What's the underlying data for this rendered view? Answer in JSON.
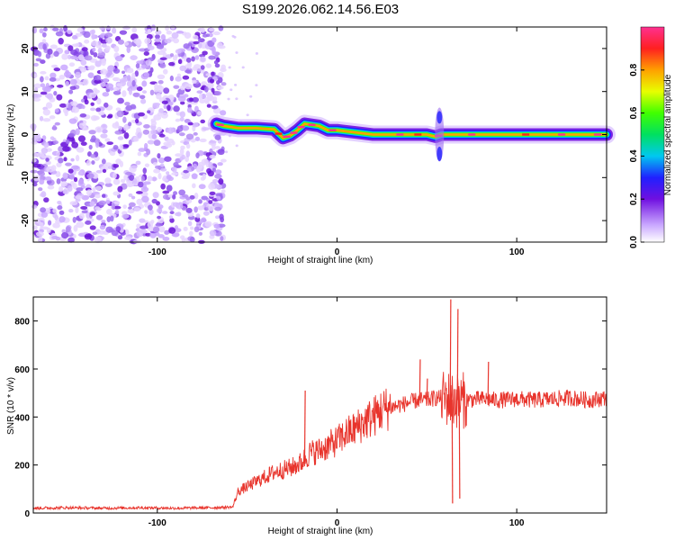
{
  "title": "S199.2026.062.14.56.E03",
  "chart_data": [
    {
      "type": "heatmap",
      "title": "S199.2026.062.14.56.E03",
      "xlabel": "Height of straight line (km)",
      "ylabel": "Frequency (Hz)",
      "xlim": [
        -169,
        150
      ],
      "ylim": [
        -25,
        25
      ],
      "xticks": [
        -100,
        0,
        100
      ],
      "xtick_labels": [
        "-100",
        "0",
        "100"
      ],
      "yticks": [
        -20,
        -10,
        0,
        10,
        20
      ],
      "ytick_labels": [
        "-20",
        "-10",
        "0",
        "10",
        "20"
      ],
      "noise_region": {
        "x_from": -169,
        "x_to": -63
      },
      "tone_track": {
        "x": [
          -67,
          -63,
          -55,
          -45,
          -35,
          -30,
          -26,
          -22,
          -18,
          -10,
          -5,
          0,
          10,
          20,
          40,
          50,
          55,
          58,
          62,
          70,
          90,
          110,
          130,
          150
        ],
        "freq": [
          2.5,
          2.0,
          1.5,
          1.5,
          1.2,
          -0.8,
          -0.2,
          1.0,
          2.5,
          2.0,
          1.0,
          1.0,
          0.5,
          0.0,
          0.0,
          0.0,
          -0.5,
          0.0,
          0.0,
          0.0,
          0.0,
          0.0,
          0.0,
          0.0
        ]
      },
      "colorbar": {
        "label": "Normalized spectral amplitude",
        "range": [
          0,
          1
        ],
        "ticks": [
          0.0,
          0.2,
          0.4,
          0.6,
          0.8
        ],
        "tick_labels": [
          "0.0",
          "0.2",
          "0.4",
          "0.6",
          "0.8"
        ]
      }
    },
    {
      "type": "line",
      "xlabel": "Height of straight line (km)",
      "ylabel": "SNR (10 * v/v)",
      "xlim": [
        -169,
        150
      ],
      "ylim": [
        0,
        900
      ],
      "xticks": [
        -100,
        0,
        100
      ],
      "xtick_labels": [
        "-100",
        "0",
        "100"
      ],
      "yticks": [
        0,
        200,
        400,
        600,
        800
      ],
      "ytick_labels": [
        "0",
        "200",
        "400",
        "600",
        "800"
      ],
      "color": "#e8342c",
      "series": [
        {
          "name": "SNR",
          "x": [
            -169,
            -150,
            -130,
            -110,
            -90,
            -70,
            -58,
            -55,
            -50,
            -45,
            -40,
            -35,
            -30,
            -25,
            -20,
            -15,
            -10,
            -5,
            0,
            5,
            10,
            15,
            20,
            25,
            30,
            35,
            40,
            45,
            50,
            55,
            60,
            65,
            70,
            80,
            90,
            100,
            110,
            120,
            130,
            140,
            150
          ],
          "values": [
            20,
            22,
            20,
            22,
            20,
            22,
            25,
            90,
            110,
            130,
            150,
            170,
            180,
            190,
            210,
            250,
            260,
            280,
            300,
            330,
            350,
            380,
            400,
            430,
            440,
            450,
            460,
            470,
            470,
            480,
            480,
            470,
            470,
            475,
            470,
            475,
            470,
            475,
            480,
            470,
            480
          ]
        }
      ],
      "spikes": [
        {
          "x": -18,
          "value": 510
        },
        {
          "x": 46,
          "value": 640
        },
        {
          "x": 50,
          "value": 560
        },
        {
          "x": 63,
          "value": 890
        },
        {
          "x": 64,
          "value": 40
        },
        {
          "x": 67,
          "value": 850
        },
        {
          "x": 68,
          "value": 60
        },
        {
          "x": 84,
          "value": 630
        }
      ]
    }
  ]
}
